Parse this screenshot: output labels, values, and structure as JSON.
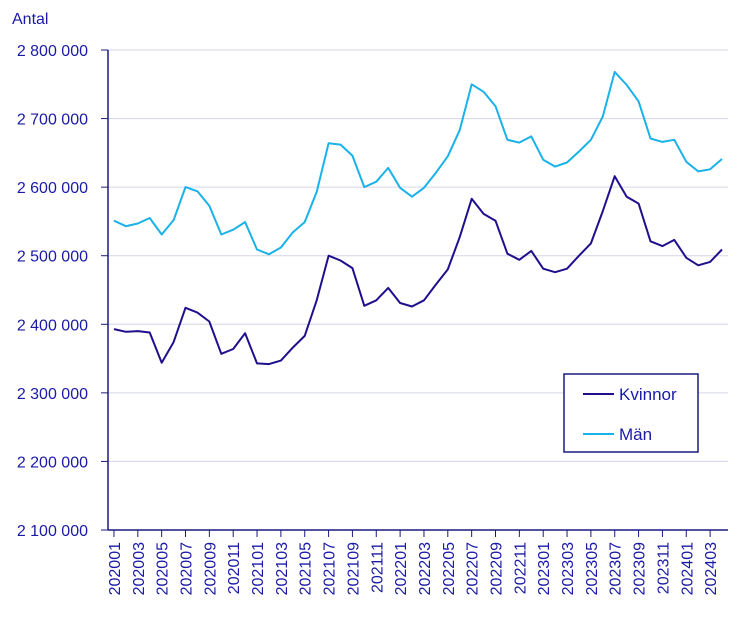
{
  "chart_data": {
    "type": "line",
    "ylabel": "Antal",
    "ylim": [
      2100000,
      2800000
    ],
    "yticks": [
      {
        "value": 2100000,
        "label": "2 100 000"
      },
      {
        "value": 2200000,
        "label": "2 200 000"
      },
      {
        "value": 2300000,
        "label": "2 300 000"
      },
      {
        "value": 2400000,
        "label": "2 400 000"
      },
      {
        "value": 2500000,
        "label": "2 500 000"
      },
      {
        "value": 2600000,
        "label": "2 600 000"
      },
      {
        "value": 2700000,
        "label": "2 700 000"
      },
      {
        "value": 2800000,
        "label": "2 800 000"
      }
    ],
    "x": [
      "202001",
      "202002",
      "202003",
      "202004",
      "202005",
      "202006",
      "202007",
      "202008",
      "202009",
      "202010",
      "202011",
      "202012",
      "202101",
      "202102",
      "202103",
      "202104",
      "202105",
      "202106",
      "202107",
      "202108",
      "202109",
      "202110",
      "202111",
      "202112",
      "202201",
      "202202",
      "202203",
      "202204",
      "202205",
      "202206",
      "202207",
      "202208",
      "202209",
      "202210",
      "202211",
      "202212",
      "202301",
      "202302",
      "202303",
      "202304",
      "202305",
      "202306",
      "202307",
      "202308",
      "202309",
      "202310",
      "202311",
      "202312",
      "202401",
      "202402",
      "202403",
      "202404"
    ],
    "xtick_labels": [
      "202001",
      "202003",
      "202005",
      "202007",
      "202009",
      "202011",
      "202101",
      "202103",
      "202105",
      "202107",
      "202109",
      "202111",
      "202201",
      "202203",
      "202205",
      "202207",
      "202209",
      "202211",
      "202301",
      "202303",
      "202305",
      "202307",
      "202309",
      "202311",
      "202401",
      "202403"
    ],
    "grid": true,
    "legend": "bottom-right",
    "series": [
      {
        "name": "Kvinnor",
        "color": "#1f0f8c",
        "values": [
          2393000,
          2389000,
          2390000,
          2388000,
          2344000,
          2374000,
          2424000,
          2417000,
          2404000,
          2357000,
          2364000,
          2387000,
          2343000,
          2342000,
          2347000,
          2366000,
          2383000,
          2435000,
          2500000,
          2493000,
          2482000,
          2427000,
          2435000,
          2453000,
          2431000,
          2426000,
          2435000,
          2458000,
          2480000,
          2527000,
          2583000,
          2561000,
          2551000,
          2503000,
          2494000,
          2507000,
          2481000,
          2476000,
          2481000,
          2500000,
          2518000,
          2565000,
          2616000,
          2586000,
          2576000,
          2521000,
          2514000,
          2523000,
          2497000,
          2486000,
          2491000,
          2509000
        ]
      },
      {
        "name": "Män",
        "color": "#1ab2e8",
        "values": [
          2551000,
          2543000,
          2547000,
          2555000,
          2531000,
          2552000,
          2600000,
          2594000,
          2573000,
          2531000,
          2538000,
          2549000,
          2509000,
          2502000,
          2512000,
          2534000,
          2549000,
          2593000,
          2664000,
          2662000,
          2646000,
          2600000,
          2608000,
          2628000,
          2599000,
          2586000,
          2599000,
          2621000,
          2645000,
          2683000,
          2750000,
          2739000,
          2718000,
          2669000,
          2665000,
          2674000,
          2640000,
          2630000,
          2636000,
          2652000,
          2669000,
          2703000,
          2768000,
          2749000,
          2725000,
          2671000,
          2666000,
          2669000,
          2637000,
          2623000,
          2626000,
          2641000
        ]
      }
    ]
  }
}
